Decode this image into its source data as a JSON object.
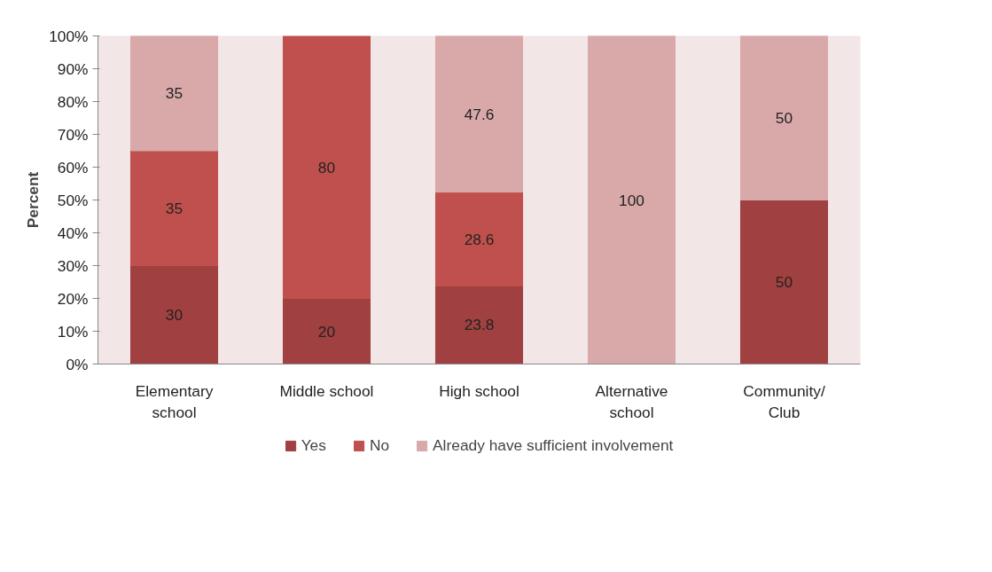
{
  "chart_data": {
    "type": "bar",
    "stacked": true,
    "ylabel": "Percent",
    "categories": [
      "Elementary school",
      "Middle school",
      "High school",
      "Alternative school",
      "Community/Club"
    ],
    "series": [
      {
        "name": "Yes",
        "color": "#a04040",
        "values": [
          30,
          20,
          23.8,
          0,
          50
        ],
        "value_labels": [
          "30",
          "20",
          "23.8",
          null,
          "50"
        ]
      },
      {
        "name": "No",
        "color": "#c0504d",
        "values": [
          35,
          80,
          28.6,
          0,
          0
        ],
        "value_labels": [
          "35",
          "80",
          "28.6",
          null,
          null
        ]
      },
      {
        "name": "Already have sufficient involvement",
        "color": "#d9a9aa",
        "values": [
          35,
          0,
          47.6,
          100,
          50
        ],
        "value_labels": [
          "35",
          null,
          "47.6",
          "100",
          "50"
        ]
      }
    ],
    "ylim": [
      0,
      100
    ],
    "yticks": [
      {
        "value": 0,
        "label": "0%"
      },
      {
        "value": 10,
        "label": "10%"
      },
      {
        "value": 20,
        "label": "20%"
      },
      {
        "value": 30,
        "label": "30%"
      },
      {
        "value": 40,
        "label": "40%"
      },
      {
        "value": 50,
        "label": "50%"
      },
      {
        "value": 60,
        "label": "60%"
      },
      {
        "value": 70,
        "label": "70%"
      },
      {
        "value": 80,
        "label": "80%"
      },
      {
        "value": 90,
        "label": "90%"
      },
      {
        "value": 100,
        "label": "100%"
      }
    ],
    "grid": false,
    "legend": "bottom"
  }
}
